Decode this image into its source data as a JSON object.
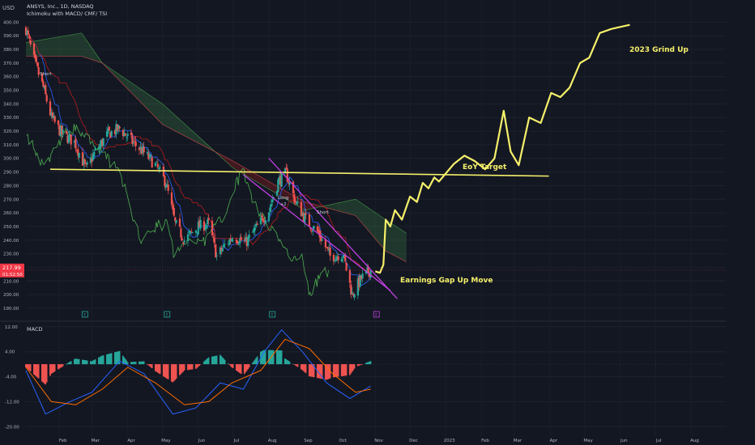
{
  "header": {
    "currency": "USD",
    "symbol_line": "ANSYS, Inc., 1D, NASDAQ",
    "indicators_line": "Ichimoku with MACD/ CMF/ TSI"
  },
  "price_badge": {
    "price": "217.99",
    "countdown": "01:52:50",
    "color": "#f23645"
  },
  "price_axis": {
    "ticks": [
      "400.00",
      "390.00",
      "380.00",
      "370.00",
      "360.00",
      "350.00",
      "340.00",
      "330.00",
      "320.00",
      "310.00",
      "300.00",
      "290.00",
      "280.00",
      "270.00",
      "260.00",
      "250.00",
      "240.00",
      "230.00",
      "220.00",
      "210.00",
      "200.00",
      "190.00"
    ],
    "range": [
      187,
      402
    ]
  },
  "macd_pane": {
    "label": "MACD",
    "ticks": [
      "12.00",
      "4.00",
      "-4.00",
      "-12.00",
      "-20.00"
    ],
    "range": [
      -22,
      13
    ]
  },
  "time_axis": {
    "labels": [
      "Feb",
      "Mar",
      "Apr",
      "May",
      "Jun",
      "Jul",
      "Aug",
      "Sep",
      "Oct",
      "Nov",
      "Dec",
      "2023",
      "Feb",
      "Mar",
      "Apr",
      "May",
      "Jun",
      "Jul",
      "Aug"
    ]
  },
  "annotations": {
    "short_1": "Short",
    "long": "Long",
    "long_sub": "+2",
    "short_2": "Short",
    "eoy_target": "EoY Target",
    "grind_up": "2023 Grind Up",
    "earnings": "Earnings Gap Up Move"
  },
  "event_markers": [
    "E",
    "E",
    "E",
    "E"
  ],
  "colors": {
    "background": "#131722",
    "up": "#26a69a",
    "down": "#ef5350",
    "annotation_yellow": "#f5f06a",
    "channel": "#c040e0",
    "conversion_line": "#2962ff",
    "base_line": "#b71c1c",
    "lagging_span": "#4caf50",
    "macd_line": "#2962ff",
    "signal_line": "#ff6d00"
  },
  "chart_data": {
    "type": "candlestick",
    "title": "ANSYS, Inc., 1D, NASDAQ",
    "ylabel": "USD",
    "ylim": [
      187,
      402
    ],
    "x_range": [
      "2022-01-03",
      "2023-08-31"
    ],
    "approximate_daily_closes": {
      "start": "2022-01-03",
      "end": "2022-10-28",
      "anchor_closes": [
        [
          "2022-01-03",
          395
        ],
        [
          "2022-01-10",
          372
        ],
        [
          "2022-01-18",
          352
        ],
        [
          "2022-01-25",
          330
        ],
        [
          "2022-02-03",
          318
        ],
        [
          "2022-02-14",
          312
        ],
        [
          "2022-02-24",
          292
        ],
        [
          "2022-03-04",
          305
        ],
        [
          "2022-03-15",
          318
        ],
        [
          "2022-03-25",
          322
        ],
        [
          "2022-04-05",
          312
        ],
        [
          "2022-04-14",
          305
        ],
        [
          "2022-04-25",
          295
        ],
        [
          "2022-05-04",
          282
        ],
        [
          "2022-05-12",
          252
        ],
        [
          "2022-05-20",
          240
        ],
        [
          "2022-06-01",
          250
        ],
        [
          "2022-06-10",
          252
        ],
        [
          "2022-06-17",
          228
        ],
        [
          "2022-06-24",
          236
        ],
        [
          "2022-07-01",
          243
        ],
        [
          "2022-07-12",
          238
        ],
        [
          "2022-07-22",
          250
        ],
        [
          "2022-08-01",
          262
        ],
        [
          "2022-08-09",
          283
        ],
        [
          "2022-08-16",
          289
        ],
        [
          "2022-08-24",
          268
        ],
        [
          "2022-09-02",
          255
        ],
        [
          "2022-09-13",
          245
        ],
        [
          "2022-09-23",
          228
        ],
        [
          "2022-10-04",
          230
        ],
        [
          "2022-10-12",
          200
        ],
        [
          "2022-10-20",
          212
        ],
        [
          "2022-10-28",
          218
        ]
      ]
    },
    "ichimoku_cloud": {
      "span_a": [
        [
          "2022-01-03",
          385
        ],
        [
          "2022-02-20",
          392
        ],
        [
          "2022-03-10",
          370
        ],
        [
          "2022-05-01",
          340
        ],
        [
          "2022-07-01",
          293
        ],
        [
          "2022-09-01",
          262
        ],
        [
          "2022-10-15",
          270
        ],
        [
          "2022-11-10",
          255
        ],
        [
          "2022-11-28",
          245
        ]
      ],
      "span_b": [
        [
          "2022-01-03",
          375
        ],
        [
          "2022-02-20",
          375
        ],
        [
          "2022-03-10",
          370
        ],
        [
          "2022-05-01",
          325
        ],
        [
          "2022-07-01",
          298
        ],
        [
          "2022-09-01",
          268
        ],
        [
          "2022-10-15",
          258
        ],
        [
          "2022-11-10",
          232
        ],
        [
          "2022-11-28",
          224
        ]
      ]
    },
    "eoy_target_line": {
      "start": [
        "2022-01-24",
        292
      ],
      "end": [
        "2023-03-31",
        287
      ]
    },
    "descending_channel": [
      {
        "start": [
          "2022-08-01",
          300
        ],
        "end": [
          "2022-11-20",
          197
        ]
      },
      {
        "start": [
          "2022-07-10",
          288
        ],
        "end": [
          "2022-11-14",
          203
        ]
      }
    ],
    "projected_path": [
      [
        "2022-11-01",
        217
      ],
      [
        "2022-11-05",
        216
      ],
      [
        "2022-11-08",
        222
      ],
      [
        "2022-11-10",
        255
      ],
      [
        "2022-11-14",
        250
      ],
      [
        "2022-11-18",
        262
      ],
      [
        "2022-11-24",
        255
      ],
      [
        "2022-12-01",
        272
      ],
      [
        "2022-12-07",
        268
      ],
      [
        "2022-12-12",
        282
      ],
      [
        "2022-12-17",
        278
      ],
      [
        "2022-12-22",
        286
      ],
      [
        "2022-12-26",
        283
      ],
      [
        "2023-01-08",
        296
      ],
      [
        "2023-01-17",
        302
      ],
      [
        "2023-01-26",
        298
      ],
      [
        "2023-02-04",
        292
      ],
      [
        "2023-02-12",
        300
      ],
      [
        "2023-02-20",
        335
      ],
      [
        "2023-02-26",
        305
      ],
      [
        "2023-03-05",
        295
      ],
      [
        "2023-03-14",
        330
      ],
      [
        "2023-03-24",
        326
      ],
      [
        "2023-04-02",
        348
      ],
      [
        "2023-04-10",
        345
      ],
      [
        "2023-04-18",
        352
      ],
      [
        "2023-04-27",
        370
      ],
      [
        "2023-05-05",
        374
      ],
      [
        "2023-05-14",
        392
      ],
      [
        "2023-05-24",
        395
      ],
      [
        "2023-06-09",
        398
      ]
    ],
    "macd": {
      "ylim": [
        -22,
        13
      ],
      "macd_line": [
        [
          "2022-01-03",
          -2
        ],
        [
          "2022-01-20",
          -16
        ],
        [
          "2022-02-10",
          -12
        ],
        [
          "2022-03-01",
          -9
        ],
        [
          "2022-03-25",
          1
        ],
        [
          "2022-04-15",
          -3
        ],
        [
          "2022-05-10",
          -16
        ],
        [
          "2022-05-30",
          -14
        ],
        [
          "2022-06-20",
          -6
        ],
        [
          "2022-07-10",
          -8
        ],
        [
          "2022-07-28",
          4
        ],
        [
          "2022-08-12",
          11
        ],
        [
          "2022-08-30",
          4
        ],
        [
          "2022-09-20",
          -6
        ],
        [
          "2022-10-10",
          -11
        ],
        [
          "2022-10-28",
          -7
        ]
      ],
      "signal_line": [
        [
          "2022-01-03",
          -1
        ],
        [
          "2022-01-25",
          -12
        ],
        [
          "2022-02-15",
          -13
        ],
        [
          "2022-03-10",
          -8
        ],
        [
          "2022-04-01",
          -1
        ],
        [
          "2022-04-25",
          -6
        ],
        [
          "2022-05-20",
          -13
        ],
        [
          "2022-06-10",
          -12
        ],
        [
          "2022-06-30",
          -6
        ],
        [
          "2022-07-25",
          -2
        ],
        [
          "2022-08-15",
          8
        ],
        [
          "2022-09-05",
          5
        ],
        [
          "2022-09-25",
          -3
        ],
        [
          "2022-10-15",
          -9
        ],
        [
          "2022-10-28",
          -8
        ]
      ]
    }
  }
}
